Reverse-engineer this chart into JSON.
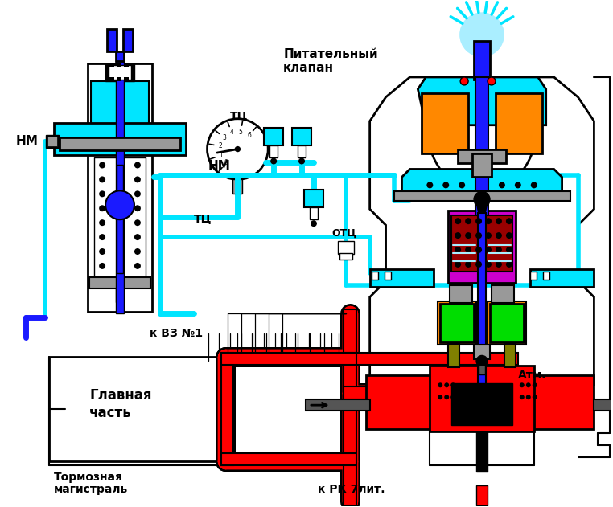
{
  "bg_color": "#ffffff",
  "text_питательный": "Питательный\nклапан",
  "text_нм1": "НМ",
  "text_нм2": "НМ",
  "text_тц_top": "ТЦ",
  "text_тц_mid": "ТЦ",
  "text_отц": "ОТЦ",
  "text_вз": "к ВЗ №1",
  "text_главная1": "Главная",
  "text_главная2": "часть",
  "text_торм1": "Тормозная",
  "text_торм2": "магистраль",
  "text_рк": "к РК 7лит.",
  "text_атм": "Атм.",
  "cyan": "#00e5ff",
  "blue": "#1a1aff",
  "red": "#ff0000",
  "green": "#00dd00",
  "orange": "#ff8800",
  "dark_red": "#990000",
  "olive": "#808000",
  "gray": "#999999",
  "dark_gray": "#555555",
  "purple": "#cc00cc",
  "light_cyan": "#aaeeff",
  "black": "#000000",
  "white": "#ffffff"
}
